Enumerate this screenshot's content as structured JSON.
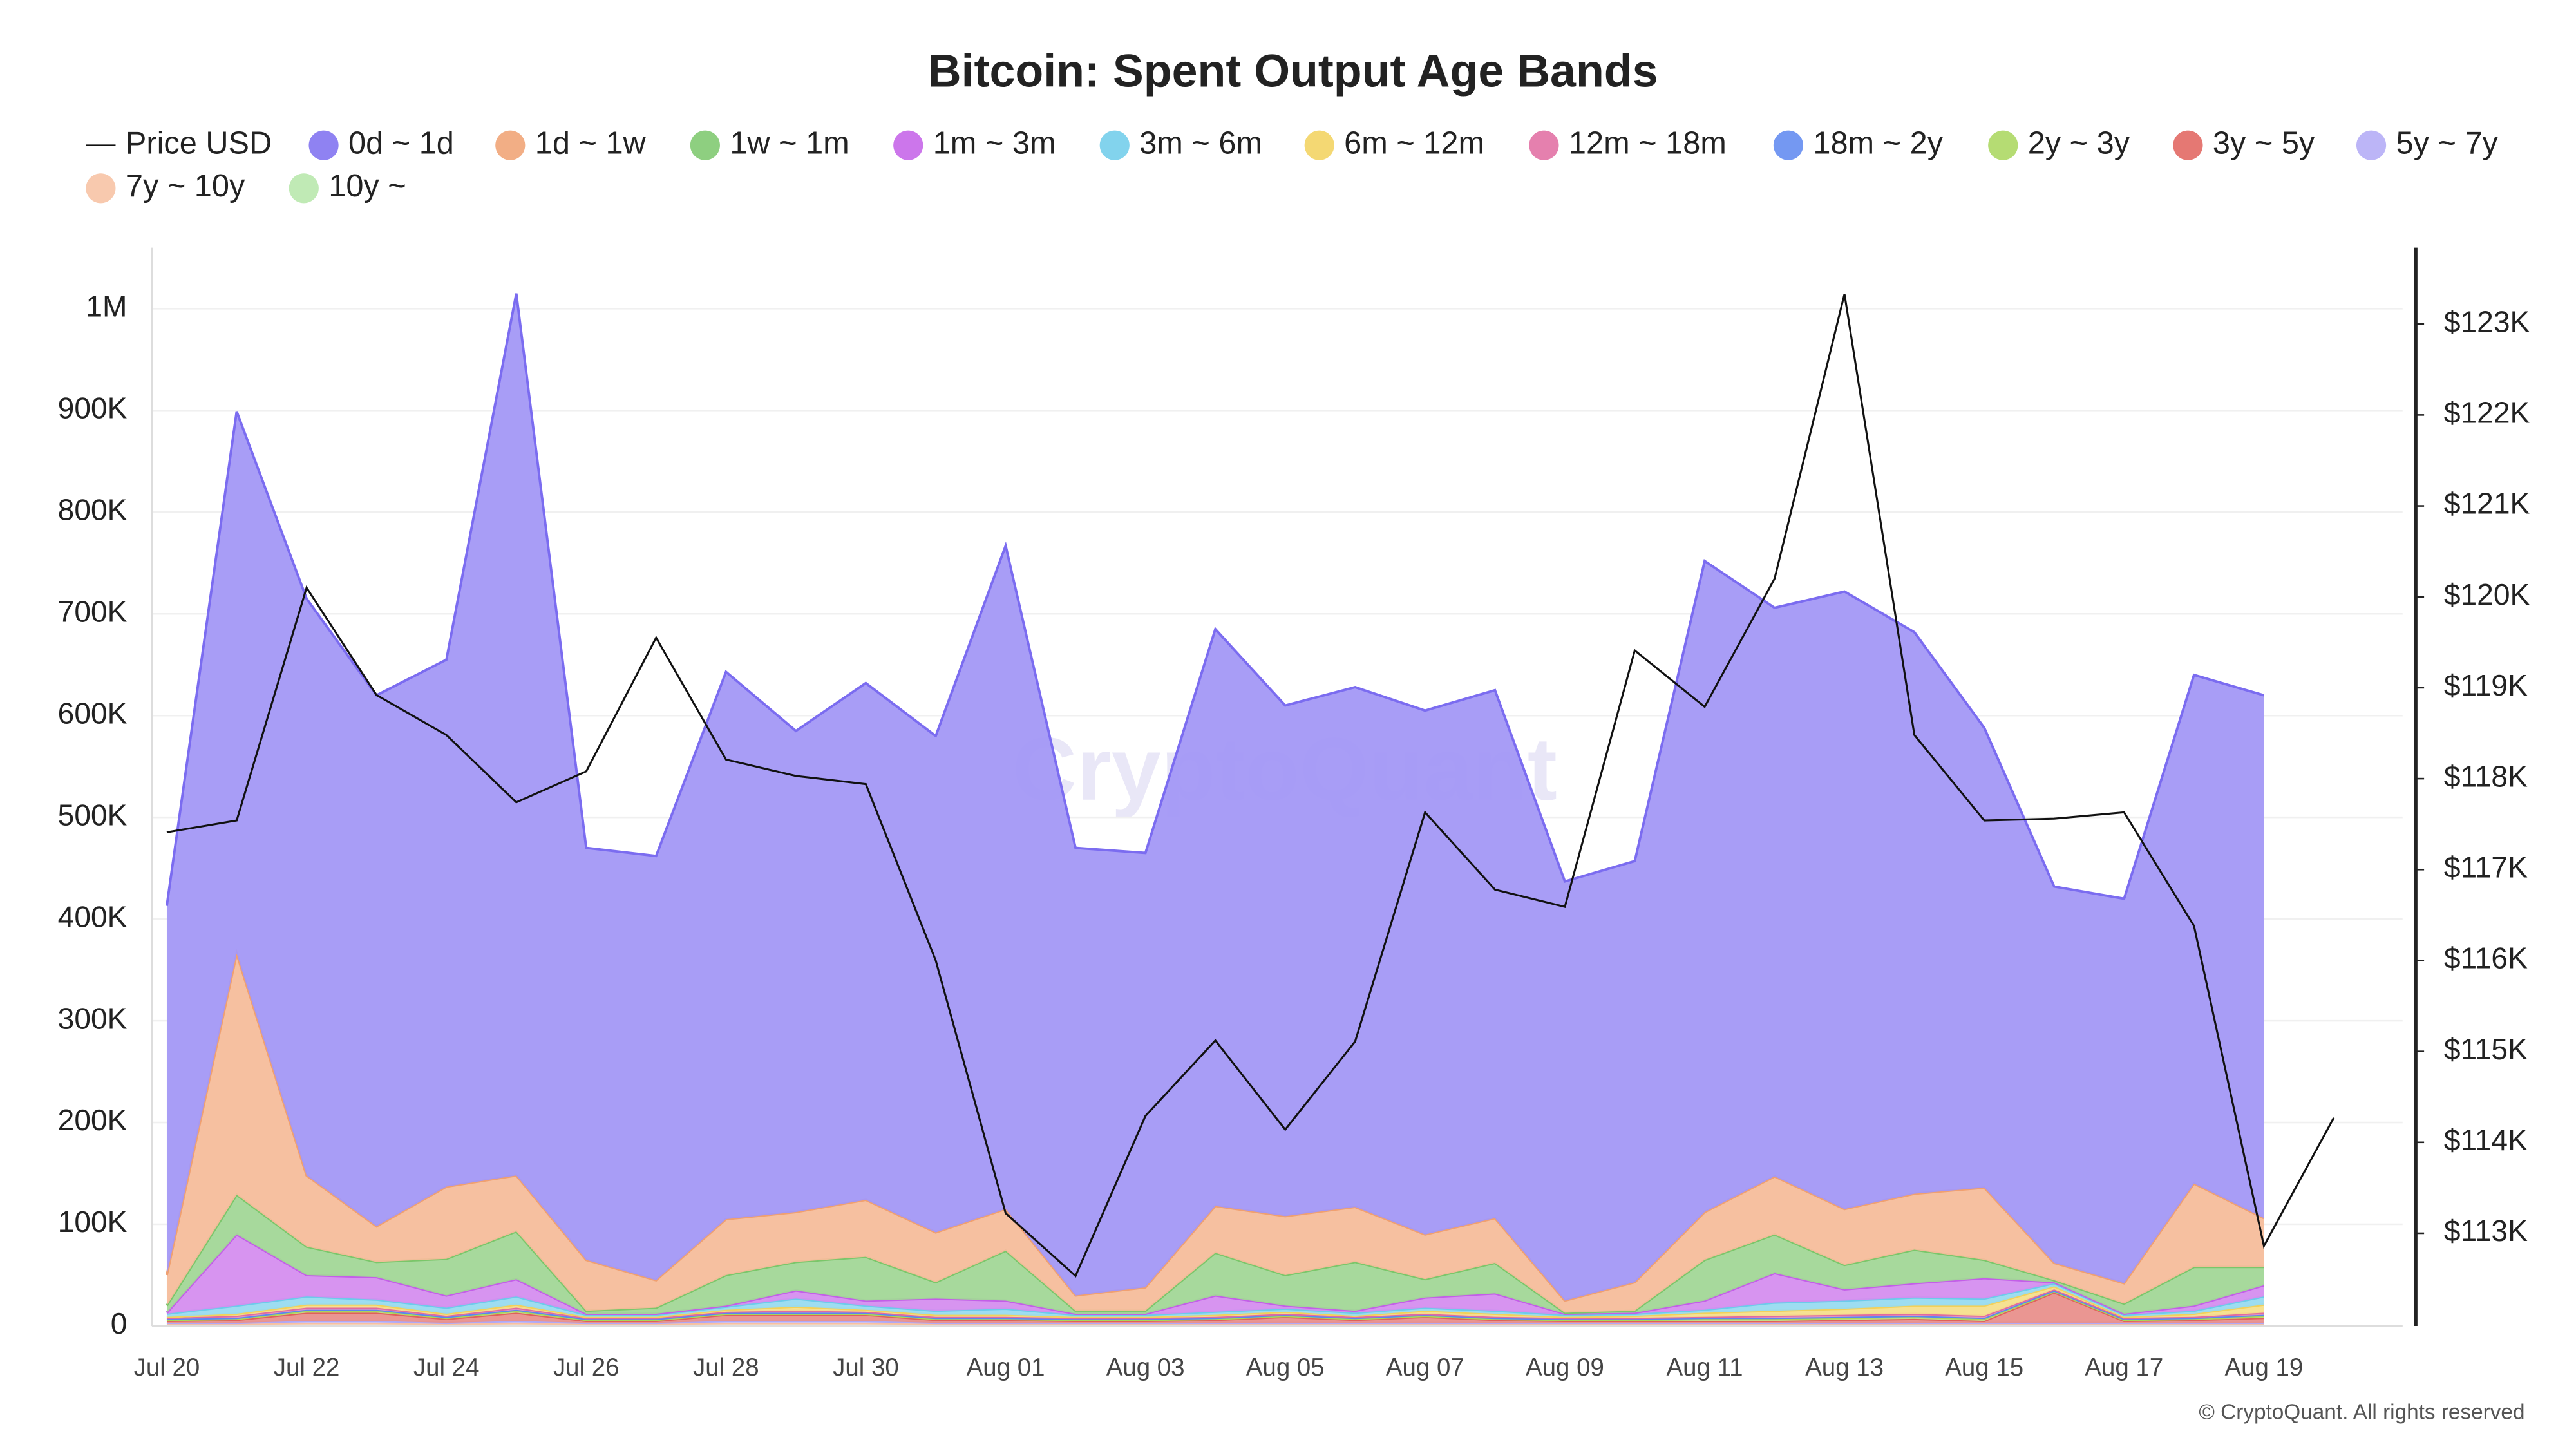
{
  "chart_data": {
    "type": "area",
    "stacked": true,
    "title": "Bitcoin: Spent Output Age Bands",
    "watermark": "CryptoQuant",
    "footer": "© CryptoQuant. All rights reserved",
    "categories": [
      "Jul 20",
      null,
      "Jul 22",
      null,
      "Jul 24",
      null,
      "Jul 26",
      null,
      "Jul 28",
      null,
      "Jul 30",
      null,
      "Aug 01",
      null,
      "Aug 03",
      null,
      "Aug 05",
      null,
      "Aug 07",
      null,
      "Aug 09",
      null,
      "Aug 11",
      null,
      "Aug 13",
      null,
      "Aug 15",
      null,
      "Aug 17",
      null,
      "Aug 19",
      null
    ],
    "ylim": [
      0,
      1060000
    ],
    "yticks": [
      0,
      {
        "value": 100000,
        "label": "100K"
      },
      {
        "value": 200000,
        "label": "200K"
      },
      {
        "value": 300000,
        "label": "300K"
      },
      {
        "value": 400000,
        "label": "400K"
      },
      {
        "value": 500000,
        "label": "500K"
      },
      {
        "value": 600000,
        "label": "600K"
      },
      {
        "value": 700000,
        "label": "700K"
      },
      {
        "value": 800000,
        "label": "800K"
      },
      {
        "value": 900000,
        "label": "900K"
      },
      {
        "value": 1000000,
        "label": "1M"
      }
    ],
    "y2lim": [
      111980,
      123840
    ],
    "y2ticks": [
      {
        "value": 113000,
        "label": "$113K"
      },
      {
        "value": 114000,
        "label": "$114K"
      },
      {
        "value": 115000,
        "label": "$115K"
      },
      {
        "value": 116000,
        "label": "$116K"
      },
      {
        "value": 117000,
        "label": "$117K"
      },
      {
        "value": 118000,
        "label": "$118K"
      },
      {
        "value": 119000,
        "label": "$119K"
      },
      {
        "value": 120000,
        "label": "$120K"
      },
      {
        "value": 121000,
        "label": "$121K"
      },
      {
        "value": 122000,
        "label": "$122K"
      },
      {
        "value": 123000,
        "label": "$123K"
      }
    ],
    "grid": true,
    "legend": "top",
    "series": [
      {
        "name": "Price USD",
        "color": "#111111",
        "axis": "y2",
        "type": "line",
        "values": [
          117410,
          117540,
          120100,
          118920,
          118480,
          117740,
          118080,
          119550,
          118210,
          118030,
          117940,
          116000,
          113220,
          112530,
          114290,
          115120,
          114140,
          115110,
          117630,
          116780,
          116590,
          119410,
          118790,
          120200,
          123330,
          118480,
          117540,
          117560,
          117630,
          116380,
          112860,
          114270
        ]
      },
      {
        "name": "0d ~ 1d",
        "color": "#7b6cf0",
        "values": [
          363000,
          533000,
          567000,
          522000,
          518000,
          867000,
          405000,
          417000,
          538000,
          473000,
          508000,
          488000,
          652000,
          440000,
          427000,
          567000,
          502000,
          511000,
          515000,
          519000,
          412000,
          414000,
          640000,
          559000,
          607000,
          552000,
          452000,
          370000,
          378000,
          500000,
          514000,
          null
        ]
      },
      {
        "name": "1d ~ 1w",
        "color": "#f0a070",
        "values": [
          30000,
          237000,
          70000,
          35000,
          71000,
          55000,
          50000,
          27000,
          55000,
          49000,
          56000,
          49000,
          41000,
          15000,
          23000,
          46000,
          58000,
          54000,
          44000,
          44000,
          12000,
          28000,
          47000,
          57000,
          55000,
          55000,
          71000,
          17000,
          20000,
          82000,
          48000,
          null
        ]
      },
      {
        "name": "1w ~ 1m",
        "color": "#7ac66a",
        "values": [
          7000,
          39000,
          28000,
          15000,
          36000,
          47000,
          3000,
          6000,
          30000,
          28000,
          43000,
          16000,
          49000,
          3000,
          3000,
          42000,
          30000,
          48000,
          18000,
          30000,
          1000,
          2000,
          40000,
          38000,
          24000,
          33000,
          18000,
          2000,
          10000,
          38000,
          18000,
          null
        ]
      },
      {
        "name": "1m ~ 3m",
        "color": "#c35ee8",
        "values": [
          1000,
          70000,
          21000,
          22000,
          12000,
          17000,
          1000,
          1000,
          1000,
          8000,
          5000,
          12000,
          8000,
          1000,
          1000,
          16000,
          3000,
          2000,
          10000,
          17000,
          1000,
          1000,
          9000,
          29000,
          11000,
          14000,
          20000,
          1000,
          1000,
          5000,
          11000,
          null
        ]
      },
      {
        "name": "3m ~ 6m",
        "color": "#6ccbea",
        "values": [
          3000,
          8000,
          8000,
          5000,
          6000,
          8000,
          2000,
          2000,
          3000,
          8000,
          4000,
          4000,
          6000,
          2000,
          2000,
          3000,
          3000,
          3000,
          3000,
          3000,
          2000,
          2000,
          3000,
          8000,
          8000,
          8000,
          7000,
          3000,
          2000,
          3000,
          8000,
          null
        ]
      },
      {
        "name": "6m ~ 12m",
        "color": "#f2d15a",
        "values": [
          1000,
          2000,
          3000,
          3000,
          2000,
          3000,
          1000,
          1000,
          2000,
          4000,
          2000,
          2000,
          2000,
          1000,
          1000,
          2000,
          2000,
          1000,
          3000,
          3000,
          1000,
          2000,
          4000,
          5000,
          6000,
          8000,
          10000,
          3000,
          1000,
          3000,
          8000,
          null
        ]
      },
      {
        "name": "12m ~ 18m",
        "color": "#e06aa0",
        "values": [
          1000,
          2000,
          2000,
          2000,
          1000,
          2000,
          1000,
          1000,
          1000,
          2000,
          1000,
          1000,
          1000,
          1000,
          1000,
          1000,
          1000,
          1000,
          1000,
          1000,
          1000,
          1000,
          1000,
          2000,
          2000,
          2000,
          2000,
          1000,
          1000,
          1000,
          2000,
          null
        ]
      },
      {
        "name": "18m ~ 2y",
        "color": "#5b86f0",
        "values": [
          1000,
          1000,
          1000,
          1000,
          1000,
          1000,
          1000,
          1000,
          1000,
          1000,
          1000,
          1000,
          1000,
          1000,
          1000,
          1000,
          1000,
          1000,
          1000,
          1000,
          1000,
          1000,
          1000,
          1000,
          1000,
          1000,
          1000,
          1000,
          1000,
          1000,
          1000,
          null
        ]
      },
      {
        "name": "2y ~ 3y",
        "color": "#a8d65a",
        "values": [
          1000,
          1000,
          2000,
          2000,
          1000,
          2000,
          1000,
          1000,
          1000,
          1000,
          1000,
          1000,
          1000,
          1000,
          1000,
          1000,
          1000,
          1000,
          1000,
          1000,
          1000,
          1000,
          2000,
          2000,
          2000,
          2000,
          2000,
          1000,
          1000,
          1000,
          2000,
          null
        ]
      },
      {
        "name": "3y ~ 5y",
        "color": "#e0605a",
        "values": [
          2000,
          3000,
          8000,
          8000,
          4000,
          8000,
          2000,
          2000,
          6000,
          6000,
          6000,
          3000,
          3000,
          2000,
          2000,
          3000,
          6000,
          3000,
          6000,
          3000,
          2000,
          2000,
          2000,
          2000,
          3000,
          4000,
          2000,
          30000,
          2000,
          3000,
          5000,
          null
        ]
      },
      {
        "name": "5y ~ 7y",
        "color": "#b0a8f5",
        "values": [
          1000,
          1000,
          2000,
          2000,
          1000,
          2000,
          1000,
          1000,
          2000,
          2000,
          2000,
          1000,
          1000,
          1000,
          1000,
          1000,
          1000,
          1000,
          1000,
          1000,
          1000,
          1000,
          1000,
          1000,
          1000,
          1000,
          1000,
          1000,
          1000,
          1000,
          1000,
          null
        ]
      },
      {
        "name": "7y ~ 10y",
        "color": "#f7c0a0",
        "values": [
          1000,
          1000,
          2000,
          2000,
          1000,
          2000,
          1000,
          1000,
          2000,
          2000,
          2000,
          1000,
          1000,
          1000,
          1000,
          1000,
          1000,
          1000,
          1000,
          1000,
          1000,
          1000,
          1000,
          1000,
          1000,
          1000,
          1000,
          1000,
          1000,
          1000,
          1000,
          null
        ]
      },
      {
        "name": "10y ~",
        "color": "#b5e6a8",
        "values": [
          1000,
          1000,
          1000,
          1000,
          1000,
          1000,
          1000,
          1000,
          1000,
          1000,
          1000,
          1000,
          1000,
          1000,
          1000,
          1000,
          1000,
          1000,
          1000,
          1000,
          1000,
          1000,
          1000,
          1000,
          1000,
          1000,
          1000,
          1000,
          1000,
          1000,
          1000,
          null
        ]
      }
    ]
  }
}
